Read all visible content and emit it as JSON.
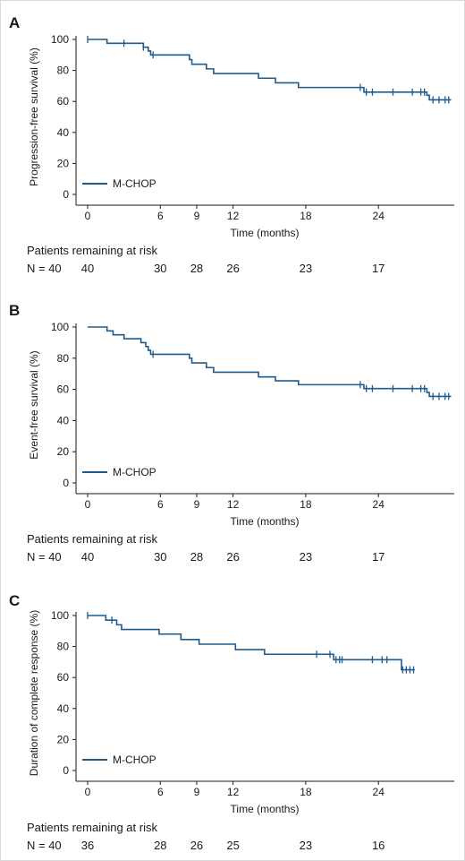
{
  "colors": {
    "series": "#1f5b8c",
    "axis": "#1a1a1a"
  },
  "chart_data": [
    {
      "panel": "A",
      "type": "line",
      "ylabel": "Progression-free survival (%)",
      "xlabel": "Time (months)",
      "xlim": [
        -1,
        30.5
      ],
      "ylim": [
        0,
        100
      ],
      "xticks": [
        0,
        6,
        9,
        12,
        18,
        24
      ],
      "yticks": [
        0,
        20,
        40,
        60,
        80,
        100
      ],
      "grid": false,
      "legend_position": "bottom-left",
      "series": [
        {
          "name": "M-CHOP",
          "steps": [
            [
              0,
              100
            ],
            [
              1.6,
              97.5
            ],
            [
              4.6,
              95
            ],
            [
              5.0,
              92.5
            ],
            [
              5.2,
              90
            ],
            [
              8.4,
              87
            ],
            [
              8.6,
              84
            ],
            [
              9.8,
              81
            ],
            [
              10.4,
              78
            ],
            [
              14.1,
              75
            ],
            [
              15.5,
              72
            ],
            [
              17.4,
              69
            ],
            [
              22.8,
              66
            ],
            [
              28.0,
              64
            ],
            [
              28.2,
              61
            ],
            [
              30,
              61
            ]
          ],
          "censor_x": [
            0,
            3,
            4.6,
            5.4,
            22.5,
            23.0,
            23.5,
            25.2,
            26.8,
            27.5,
            27.8,
            28.5,
            29.0,
            29.5,
            29.8
          ]
        }
      ],
      "risk_table": {
        "title": "Patients remaining at risk",
        "label": "N = 40",
        "times": [
          0,
          6,
          9,
          12,
          18,
          24
        ],
        "values": [
          "40",
          "30",
          "28",
          "26",
          "23",
          "17"
        ]
      }
    },
    {
      "panel": "B",
      "type": "line",
      "ylabel": "Event-free survival (%)",
      "xlabel": "Time (months)",
      "xlim": [
        -1,
        30.5
      ],
      "ylim": [
        0,
        100
      ],
      "xticks": [
        0,
        6,
        9,
        12,
        18,
        24
      ],
      "yticks": [
        0,
        20,
        40,
        60,
        80,
        100
      ],
      "grid": false,
      "legend_position": "bottom-left",
      "series": [
        {
          "name": "M-CHOP",
          "steps": [
            [
              0,
              100
            ],
            [
              1.6,
              97.5
            ],
            [
              2.1,
              95
            ],
            [
              3.0,
              92.5
            ],
            [
              4.4,
              90
            ],
            [
              4.8,
              87.5
            ],
            [
              5.0,
              85
            ],
            [
              5.2,
              82.5
            ],
            [
              8.4,
              80
            ],
            [
              8.6,
              77
            ],
            [
              9.8,
              74
            ],
            [
              10.4,
              71
            ],
            [
              14.1,
              68
            ],
            [
              15.5,
              65.5
            ],
            [
              17.4,
              63
            ],
            [
              22.8,
              60.5
            ],
            [
              28.0,
              58
            ],
            [
              28.2,
              55.5
            ],
            [
              30,
              55.5
            ]
          ],
          "censor_x": [
            5.4,
            22.5,
            23.0,
            23.5,
            25.2,
            26.8,
            27.5,
            27.8,
            28.5,
            29.0,
            29.5,
            29.8
          ]
        }
      ],
      "risk_table": {
        "title": "Patients remaining at risk",
        "label": "N = 40",
        "times": [
          0,
          6,
          9,
          12,
          18,
          24
        ],
        "values": [
          "40",
          "30",
          "28",
          "26",
          "23",
          "17"
        ]
      }
    },
    {
      "panel": "C",
      "type": "line",
      "ylabel": "Duration of complete response (%)",
      "xlabel": "Time (months)",
      "xlim": [
        -1,
        30.5
      ],
      "ylim": [
        0,
        100
      ],
      "xticks": [
        0,
        6,
        9,
        12,
        18,
        24
      ],
      "yticks": [
        0,
        20,
        40,
        60,
        80,
        100
      ],
      "grid": false,
      "legend_position": "bottom-left",
      "series": [
        {
          "name": "M-CHOP",
          "steps": [
            [
              0,
              100
            ],
            [
              1.5,
              97
            ],
            [
              2.4,
              94
            ],
            [
              2.8,
              91
            ],
            [
              5.9,
              88
            ],
            [
              7.7,
              84.5
            ],
            [
              9.2,
              81.5
            ],
            [
              12.2,
              78
            ],
            [
              14.6,
              75
            ],
            [
              20.3,
              71.5
            ],
            [
              25.9,
              65
            ],
            [
              27.0,
              65
            ]
          ],
          "censor_x": [
            0,
            2.0,
            18.9,
            20.0,
            20.5,
            20.8,
            21.0,
            23.5,
            24.3,
            24.7,
            26.0,
            26.3,
            26.6,
            26.9
          ]
        }
      ],
      "risk_table": {
        "title": "Patients remaining at risk",
        "label": "N = 40",
        "times": [
          0,
          6,
          9,
          12,
          18,
          24
        ],
        "values": [
          "36",
          "28",
          "26",
          "25",
          "23",
          "16"
        ]
      }
    }
  ]
}
